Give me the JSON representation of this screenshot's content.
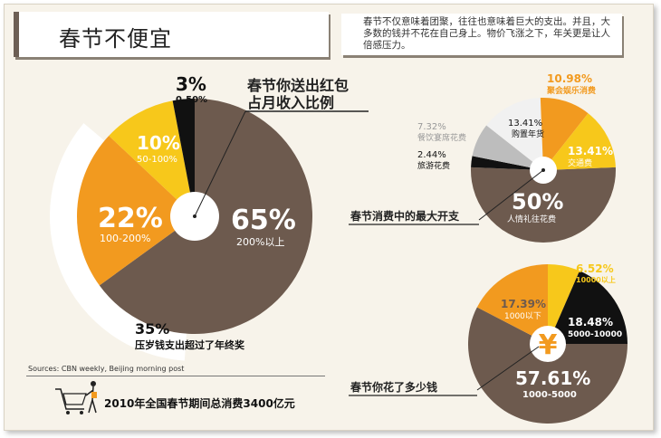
{
  "title": "春节不便宜",
  "intro": "春节不仅意味着团聚，往往也意味着巨大的支出。并且，大多数的钱并不花在自己身上。物价飞涨之下，年关更是让人倍感压力。",
  "sources": "Sources:  CBN weekly, Beijing morning post",
  "total": "2010年全国春节期间总消费3400亿元",
  "colors": {
    "brown": "#6d5a4e",
    "orange": "#f29a1f",
    "yellow": "#f7c81b",
    "black": "#111111",
    "gray": "#bdbdbd",
    "light": "#f1f1f1"
  },
  "icons": {
    "cart": "shopping-cart-icon",
    "person": "shopper-person-icon",
    "yuan": "yuan-sign-icon"
  },
  "chart_data": [
    {
      "type": "pie",
      "title": "春节你送出红包占月收入比例",
      "title_lines": [
        "春节你送出红包",
        "占月收入比例"
      ],
      "slices": [
        {
          "value": 65,
          "pct_label": "65%",
          "label": "200%以上",
          "color": "#6d5a4e"
        },
        {
          "value": 22,
          "pct_label": "22%",
          "label": "100-200%",
          "color": "#f29a1f"
        },
        {
          "value": 10,
          "pct_label": "10%",
          "label": "50-100%",
          "color": "#f7c81b"
        },
        {
          "value": 3,
          "pct_label": "3%",
          "label": "0-50%",
          "color": "#111111"
        }
      ],
      "annotation": {
        "value": 35,
        "pct_label": "35%",
        "text": "压岁钱支出超过了年终奖"
      }
    },
    {
      "type": "pie",
      "title": "春节消费中的最大开支",
      "slices": [
        {
          "value": 50,
          "pct_label": "50%",
          "label": "人情礼往花费",
          "color": "#6d5a4e"
        },
        {
          "value": 2.44,
          "pct_label": "2.44%",
          "label": "旅游花费",
          "color": "#111111"
        },
        {
          "value": 7.32,
          "pct_label": "7.32%",
          "label": "餐饮宴席花费",
          "color": "#bdbdbd"
        },
        {
          "value": 13.41,
          "pct_label": "13.41%",
          "label": "购置年货",
          "color": "#f1f1f1"
        },
        {
          "value": 10.98,
          "pct_label": "10.98%",
          "label": "聚会娱乐消费",
          "color": "#f29a1f"
        },
        {
          "value": 13.41,
          "pct_label": "13.41%",
          "label": "交通费",
          "color": "#f7c81b"
        }
      ]
    },
    {
      "type": "pie",
      "title": "春节你花了多少钱",
      "slices": [
        {
          "value": 57.61,
          "pct_label": "57.61%",
          "label": "1000-5000",
          "color": "#6d5a4e"
        },
        {
          "value": 17.39,
          "pct_label": "17.39%",
          "label": "1000以下",
          "color": "#f29a1f"
        },
        {
          "value": 6.52,
          "pct_label": "6.52%",
          "label": "10000以上",
          "color": "#f7c81b"
        },
        {
          "value": 18.48,
          "pct_label": "18.48%",
          "label": "5000-10000",
          "color": "#111111"
        }
      ]
    }
  ]
}
